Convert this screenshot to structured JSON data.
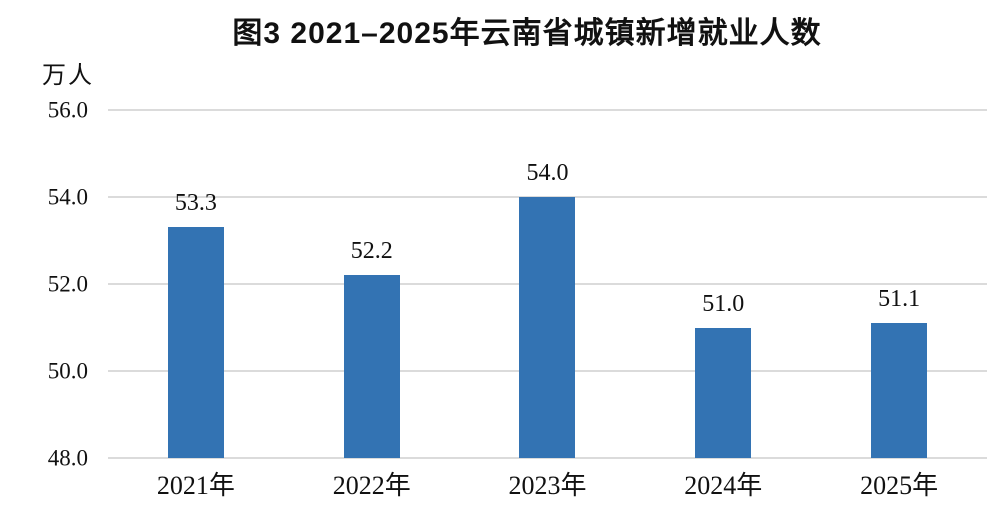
{
  "chart_data": {
    "type": "bar",
    "title": "图3 2021–2025年云南省城镇新增就业人数",
    "unit_label": "万人",
    "categories": [
      "2021年",
      "2022年",
      "2023年",
      "2024年",
      "2025年"
    ],
    "values": [
      53.3,
      52.2,
      54.0,
      51.0,
      51.1
    ],
    "value_labels": [
      "53.3",
      "52.2",
      "54.0",
      "51.0",
      "51.1"
    ],
    "xlabel": "",
    "ylabel": "万人",
    "ylim": [
      48.0,
      56.0
    ],
    "yticks": [
      56.0,
      54.0,
      52.0,
      50.0,
      48.0
    ],
    "ytick_labels": [
      "56.0",
      "54.0",
      "52.0",
      "50.0",
      "48.0"
    ],
    "grid": true,
    "legend": "none",
    "bar_color": "#3373B3",
    "gridline_color": "#DBDBDB",
    "text_color": "#111111"
  }
}
